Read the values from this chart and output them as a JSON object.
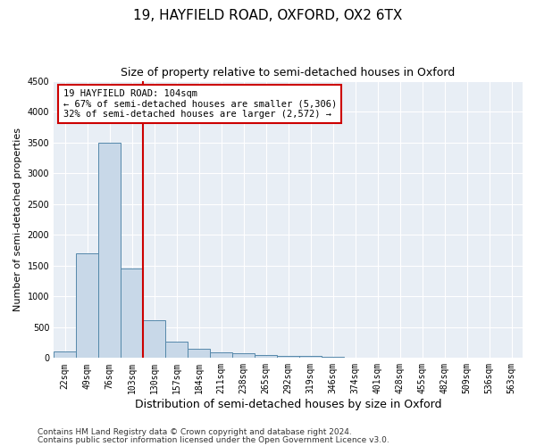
{
  "title": "19, HAYFIELD ROAD, OXFORD, OX2 6TX",
  "subtitle": "Size of property relative to semi-detached houses in Oxford",
  "xlabel": "Distribution of semi-detached houses by size in Oxford",
  "ylabel": "Number of semi-detached properties",
  "categories": [
    "22sqm",
    "49sqm",
    "76sqm",
    "103sqm",
    "130sqm",
    "157sqm",
    "184sqm",
    "211sqm",
    "238sqm",
    "265sqm",
    "292sqm",
    "319sqm",
    "346sqm",
    "374sqm",
    "401sqm",
    "428sqm",
    "455sqm",
    "482sqm",
    "509sqm",
    "536sqm",
    "563sqm"
  ],
  "values": [
    110,
    1700,
    3500,
    1450,
    620,
    270,
    155,
    95,
    75,
    55,
    40,
    30,
    22,
    12,
    8,
    5,
    4,
    3,
    2,
    1,
    1
  ],
  "bar_color": "#c8d8e8",
  "bar_edge_color": "#5588aa",
  "ylim": [
    0,
    4500
  ],
  "yticks": [
    0,
    500,
    1000,
    1500,
    2000,
    2500,
    3000,
    3500,
    4000,
    4500
  ],
  "property_bin_index": 3,
  "annotation_title": "19 HAYFIELD ROAD: 104sqm",
  "annotation_line1": "← 67% of semi-detached houses are smaller (5,306)",
  "annotation_line2": "32% of semi-detached houses are larger (2,572) →",
  "vline_color": "#cc0000",
  "annotation_box_color": "#ffffff",
  "annotation_box_edge": "#cc0000",
  "footer1": "Contains HM Land Registry data © Crown copyright and database right 2024.",
  "footer2": "Contains public sector information licensed under the Open Government Licence v3.0.",
  "background_color": "#e8eef5",
  "grid_color": "#ffffff",
  "title_fontsize": 11,
  "subtitle_fontsize": 9,
  "axis_label_fontsize": 8,
  "tick_fontsize": 7,
  "annotation_fontsize": 7.5,
  "footer_fontsize": 6.5
}
